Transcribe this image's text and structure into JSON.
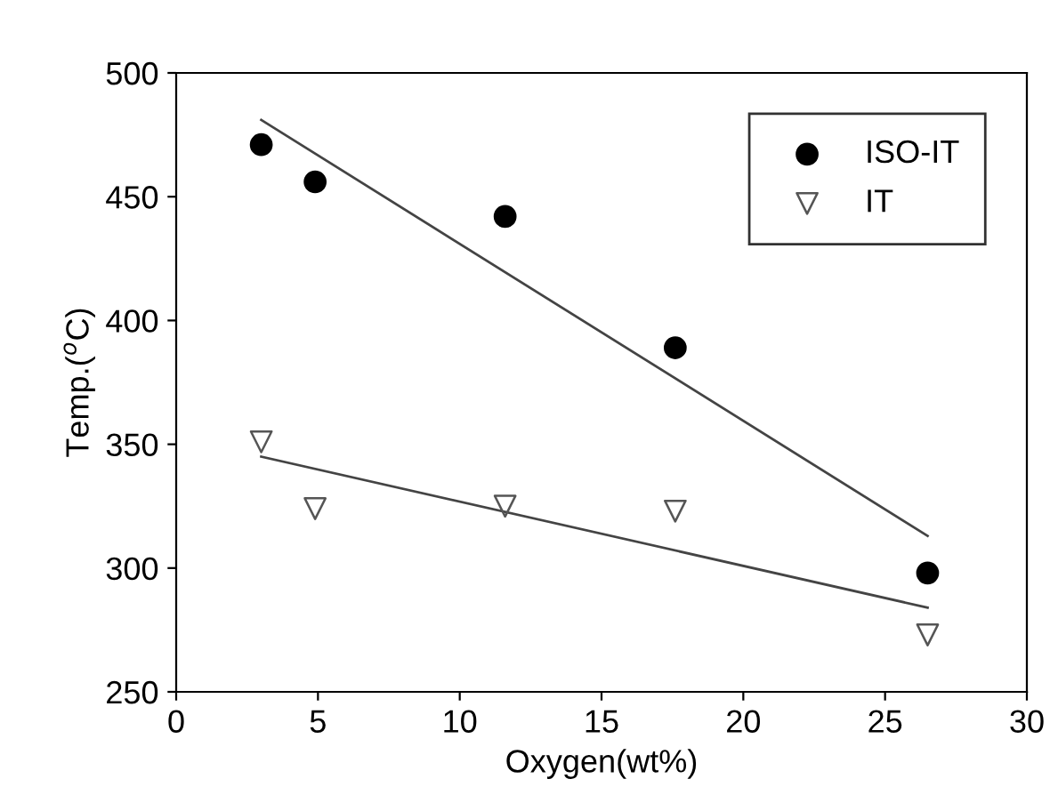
{
  "chart_data": {
    "type": "scatter",
    "xlabel": "Oxygen(wt%)",
    "ylabel": "Temp.($^{o}$C)",
    "xlim": [
      0,
      30
    ],
    "ylim": [
      250,
      500
    ],
    "xticks": [
      0,
      5,
      10,
      15,
      20,
      25,
      30
    ],
    "yticks": [
      250,
      300,
      350,
      400,
      450,
      500
    ],
    "grid": false,
    "legend": "top right",
    "series": [
      {
        "name": "ISO-IT",
        "color": "#000000",
        "marker": "circle",
        "x": [
          3,
          4.9,
          11.6,
          17.6,
          26.5
        ],
        "values": [
          471,
          456,
          442,
          389,
          298
        ]
      },
      {
        "name": "IT",
        "color": "#555555",
        "marker": "triangle",
        "x": [
          3,
          4.9,
          11.6,
          17.6,
          26.5
        ],
        "values": [
          351,
          324,
          325,
          323,
          273
        ]
      },
      {
        "type": "line",
        "color": "#444444",
        "marker": "none",
        "x": [
          3,
          26.5
        ],
        "values": [
          481,
          313
        ]
      },
      {
        "type": "line",
        "color": "#444444",
        "marker": "none",
        "x": [
          3,
          26.5
        ],
        "values": [
          345,
          284
        ]
      }
    ]
  }
}
